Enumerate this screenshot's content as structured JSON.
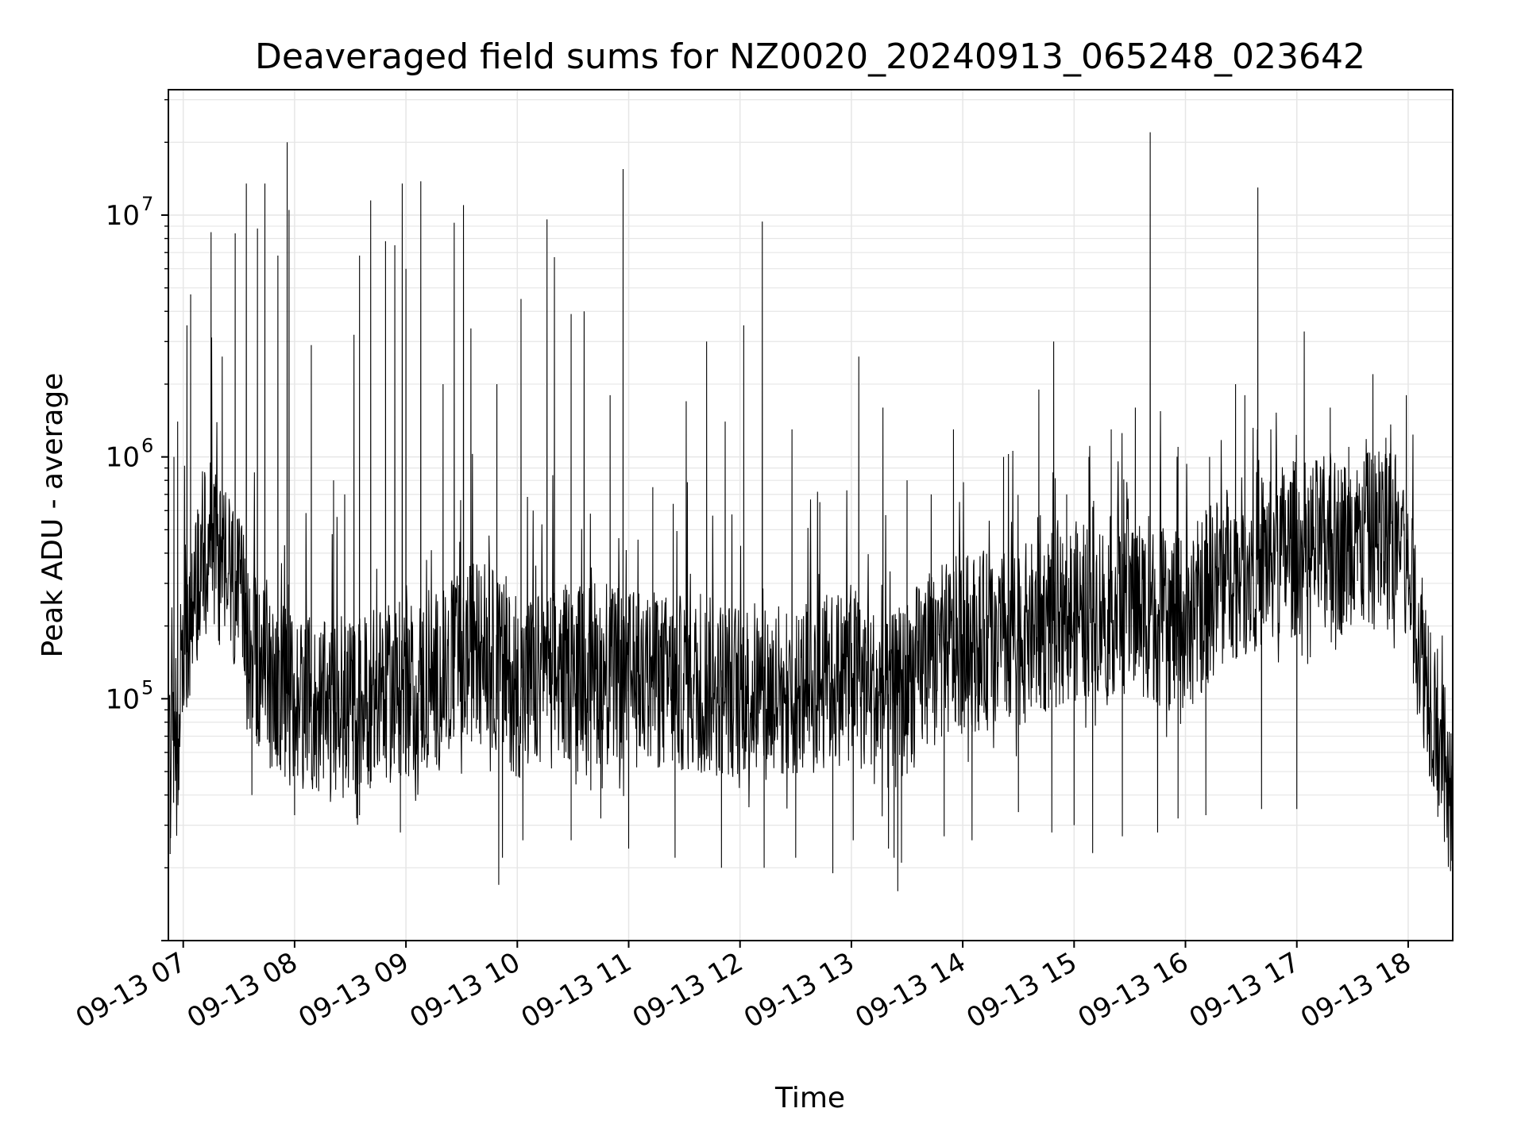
{
  "chart_data": {
    "type": "line",
    "title": "Deaveraged field sums for NZ0020_20240913_065248_023642",
    "xlabel": "Time",
    "ylabel": "Peak ADU - average",
    "xscale": "time",
    "yscale": "log",
    "xlim": [
      "2024-09-13 06:52",
      "2024-09-13 18:24"
    ],
    "ylim": [
      10000,
      33000000
    ],
    "grid": true,
    "legend": "none",
    "line_color": "#000000",
    "x_ticks": [
      "09-13 07",
      "09-13 08",
      "09-13 09",
      "09-13 10",
      "09-13 11",
      "09-13 12",
      "09-13 13",
      "09-13 14",
      "09-13 15",
      "09-13 16",
      "09-13 17",
      "09-13 18"
    ],
    "y_ticks": [
      {
        "value": 100000,
        "base": "10",
        "exp": "5"
      },
      {
        "value": 1000000,
        "base": "10",
        "exp": "6"
      },
      {
        "value": 10000000,
        "base": "10",
        "exp": "7"
      }
    ],
    "series": [
      {
        "baseline": [
          [
            "2024-09-13 06:52",
            45000
          ],
          [
            "2024-09-13 06:57",
            80000
          ],
          [
            "2024-09-13 07:05",
            300000
          ],
          [
            "2024-09-13 07:15",
            450000
          ],
          [
            "2024-09-13 07:25",
            320000
          ],
          [
            "2024-09-13 07:35",
            180000
          ],
          [
            "2024-09-13 07:45",
            120000
          ],
          [
            "2024-09-13 08:00",
            100000
          ],
          [
            "2024-09-13 08:20",
            85000
          ],
          [
            "2024-09-13 08:40",
            100000
          ],
          [
            "2024-09-13 09:00",
            110000
          ],
          [
            "2024-09-13 09:20",
            120000
          ],
          [
            "2024-09-13 09:40",
            170000
          ],
          [
            "2024-09-13 10:00",
            110000
          ],
          [
            "2024-09-13 10:30",
            130000
          ],
          [
            "2024-09-13 11:00",
            120000
          ],
          [
            "2024-09-13 11:30",
            115000
          ],
          [
            "2024-09-13 12:00",
            110000
          ],
          [
            "2024-09-13 12:30",
            105000
          ],
          [
            "2024-09-13 13:00",
            130000
          ],
          [
            "2024-09-13 13:20",
            90000
          ],
          [
            "2024-09-13 13:40",
            140000
          ],
          [
            "2024-09-13 14:00",
            170000
          ],
          [
            "2024-09-13 14:30",
            180000
          ],
          [
            "2024-09-13 15:00",
            230000
          ],
          [
            "2024-09-13 15:30",
            250000
          ],
          [
            "2024-09-13 16:00",
            200000
          ],
          [
            "2024-09-13 16:20",
            320000
          ],
          [
            "2024-09-13 16:40",
            380000
          ],
          [
            "2024-09-13 17:00",
            420000
          ],
          [
            "2024-09-13 17:30",
            430000
          ],
          [
            "2024-09-13 17:55",
            480000
          ],
          [
            "2024-09-13 18:05",
            200000
          ],
          [
            "2024-09-13 18:15",
            80000
          ],
          [
            "2024-09-13 18:24",
            30000
          ]
        ],
        "spikes": [
          [
            "2024-09-13 06:55",
            1000000
          ],
          [
            "2024-09-13 06:57",
            1400000
          ],
          [
            "2024-09-13 07:02",
            3500000
          ],
          [
            "2024-09-13 07:04",
            4700000
          ],
          [
            "2024-09-13 07:15",
            8500000
          ],
          [
            "2024-09-13 07:21",
            2600000
          ],
          [
            "2024-09-13 07:28",
            8400000
          ],
          [
            "2024-09-13 07:34",
            13500000
          ],
          [
            "2024-09-13 07:40",
            8800000
          ],
          [
            "2024-09-13 07:44",
            13500000
          ],
          [
            "2024-09-13 07:51",
            6800000
          ],
          [
            "2024-09-13 07:56",
            20000000
          ],
          [
            "2024-09-13 07:57",
            10500000
          ],
          [
            "2024-09-13 08:09",
            2900000
          ],
          [
            "2024-09-13 08:21",
            800000
          ],
          [
            "2024-09-13 08:27",
            700000
          ],
          [
            "2024-09-13 08:32",
            3200000
          ],
          [
            "2024-09-13 08:35",
            6800000
          ],
          [
            "2024-09-13 08:41",
            11500000
          ],
          [
            "2024-09-13 08:49",
            7800000
          ],
          [
            "2024-09-13 08:54",
            7500000
          ],
          [
            "2024-09-13 08:58",
            13500000
          ],
          [
            "2024-09-13 09:00",
            6000000
          ],
          [
            "2024-09-13 09:08",
            13800000
          ],
          [
            "2024-09-13 09:20",
            2000000
          ],
          [
            "2024-09-13 09:26",
            9300000
          ],
          [
            "2024-09-13 09:31",
            11000000
          ],
          [
            "2024-09-13 09:35",
            3400000
          ],
          [
            "2024-09-13 09:49",
            2000000
          ],
          [
            "2024-09-13 10:02",
            4500000
          ],
          [
            "2024-09-13 10:16",
            9600000
          ],
          [
            "2024-09-13 10:20",
            6700000
          ],
          [
            "2024-09-13 10:29",
            3900000
          ],
          [
            "2024-09-13 10:36",
            4000000
          ],
          [
            "2024-09-13 10:50",
            1800000
          ],
          [
            "2024-09-13 10:57",
            15500000
          ],
          [
            "2024-09-13 11:13",
            750000
          ],
          [
            "2024-09-13 11:24",
            640000
          ],
          [
            "2024-09-13 11:31",
            1700000
          ],
          [
            "2024-09-13 11:42",
            3000000
          ],
          [
            "2024-09-13 11:52",
            1400000
          ],
          [
            "2024-09-13 12:02",
            3500000
          ],
          [
            "2024-09-13 12:12",
            9400000
          ],
          [
            "2024-09-13 12:28",
            1300000
          ],
          [
            "2024-09-13 12:43",
            650000
          ],
          [
            "2024-09-13 13:04",
            2600000
          ],
          [
            "2024-09-13 13:17",
            1600000
          ],
          [
            "2024-09-13 13:30",
            800000
          ],
          [
            "2024-09-13 13:43",
            700000
          ],
          [
            "2024-09-13 13:55",
            1300000
          ],
          [
            "2024-09-13 14:22",
            1000000
          ],
          [
            "2024-09-13 14:41",
            1900000
          ],
          [
            "2024-09-13 14:49",
            3000000
          ],
          [
            "2024-09-13 14:56",
            700000
          ],
          [
            "2024-09-13 15:08",
            1000000
          ],
          [
            "2024-09-13 15:20",
            1300000
          ],
          [
            "2024-09-13 15:33",
            1600000
          ],
          [
            "2024-09-13 15:41",
            22000000
          ],
          [
            "2024-09-13 15:56",
            1100000
          ],
          [
            "2024-09-13 16:13",
            1000000
          ],
          [
            "2024-09-13 16:27",
            2000000
          ],
          [
            "2024-09-13 16:32",
            1800000
          ],
          [
            "2024-09-13 16:39",
            13000000
          ],
          [
            "2024-09-13 16:46",
            1300000
          ],
          [
            "2024-09-13 17:04",
            3300000
          ],
          [
            "2024-09-13 17:18",
            1600000
          ],
          [
            "2024-09-13 17:28",
            1100000
          ],
          [
            "2024-09-13 17:41",
            2200000
          ],
          [
            "2024-09-13 17:48",
            1200000
          ],
          [
            "2024-09-13 17:59",
            1800000
          ]
        ],
        "dips": [
          [
            "2024-09-13 06:53",
            38000
          ],
          [
            "2024-09-13 07:37",
            40000
          ],
          [
            "2024-09-13 08:00",
            33000
          ],
          [
            "2024-09-13 08:35",
            33000
          ],
          [
            "2024-09-13 08:57",
            28000
          ],
          [
            "2024-09-13 09:50",
            17000
          ],
          [
            "2024-09-13 09:52",
            22000
          ],
          [
            "2024-09-13 10:03",
            26000
          ],
          [
            "2024-09-13 10:29",
            26000
          ],
          [
            "2024-09-13 10:45",
            32000
          ],
          [
            "2024-09-13 11:00",
            24000
          ],
          [
            "2024-09-13 11:25",
            22000
          ],
          [
            "2024-09-13 11:50",
            20000
          ],
          [
            "2024-09-13 12:13",
            20000
          ],
          [
            "2024-09-13 12:30",
            22000
          ],
          [
            "2024-09-13 12:50",
            19000
          ],
          [
            "2024-09-13 13:01",
            26000
          ],
          [
            "2024-09-13 13:20",
            24000
          ],
          [
            "2024-09-13 13:23",
            22000
          ],
          [
            "2024-09-13 13:25",
            16000
          ],
          [
            "2024-09-13 13:27",
            21000
          ],
          [
            "2024-09-13 13:50",
            27000
          ],
          [
            "2024-09-13 14:05",
            26000
          ],
          [
            "2024-09-13 14:30",
            34000
          ],
          [
            "2024-09-13 14:48",
            28000
          ],
          [
            "2024-09-13 15:00",
            30000
          ],
          [
            "2024-09-13 15:10",
            23000
          ],
          [
            "2024-09-13 15:26",
            27000
          ],
          [
            "2024-09-13 15:45",
            28000
          ],
          [
            "2024-09-13 15:56",
            32000
          ],
          [
            "2024-09-13 16:11",
            33000
          ],
          [
            "2024-09-13 16:41",
            35000
          ],
          [
            "2024-09-13 17:00",
            35000
          ],
          [
            "2024-09-13 18:24",
            25000
          ]
        ]
      }
    ]
  }
}
